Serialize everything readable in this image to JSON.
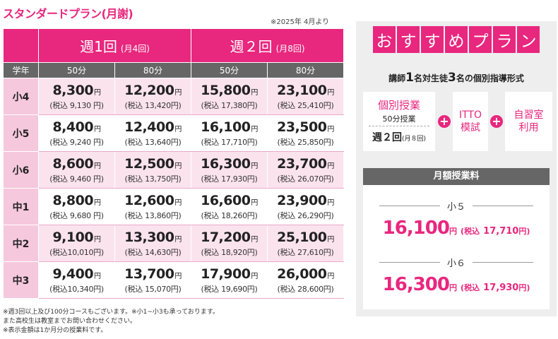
{
  "title": "スタンダードプラン(月謝)",
  "effective_date": "※2025年 4月より",
  "table": {
    "groups": [
      {
        "label": "週1回",
        "sub": "(月4回)"
      },
      {
        "label": "週２回",
        "sub": "(月8回)"
      }
    ],
    "grade_header": "学年",
    "durations": [
      "50分",
      "80分",
      "50分",
      "80分"
    ],
    "yen": "円",
    "rows": [
      {
        "grade": "小4",
        "prices": [
          {
            "main": "8,300",
            "tax": "(税込 9,130 円)"
          },
          {
            "main": "12,200",
            "tax": "(税込 13,420円)"
          },
          {
            "main": "15,800",
            "tax": "(税込 17,380円)"
          },
          {
            "main": "23,100",
            "tax": "(税込 25,410円)"
          }
        ]
      },
      {
        "grade": "小5",
        "prices": [
          {
            "main": "8,400",
            "tax": "(税込 9,240 円)"
          },
          {
            "main": "12,400",
            "tax": "(税込 13,640円)"
          },
          {
            "main": "16,100",
            "tax": "(税込 17,710円)"
          },
          {
            "main": "23,500",
            "tax": "(税込 25,850円)"
          }
        ]
      },
      {
        "grade": "小6",
        "prices": [
          {
            "main": "8,600",
            "tax": "(税込 9,460 円)"
          },
          {
            "main": "12,500",
            "tax": "(税込 13,750円)"
          },
          {
            "main": "16,300",
            "tax": "(税込 17,930円)"
          },
          {
            "main": "23,700",
            "tax": "(税込 26,070円)"
          }
        ]
      },
      {
        "grade": "中1",
        "prices": [
          {
            "main": "8,800",
            "tax": "(税込 9,680 円)"
          },
          {
            "main": "12,600",
            "tax": "(税込 13,860円)"
          },
          {
            "main": "16,600",
            "tax": "(税込 18,260円)"
          },
          {
            "main": "23,900",
            "tax": "(税込 26,290円)"
          }
        ]
      },
      {
        "grade": "中2",
        "prices": [
          {
            "main": "9,100",
            "tax": "(税込10,010円)"
          },
          {
            "main": "13,300",
            "tax": "(税込 14,630円)"
          },
          {
            "main": "17,200",
            "tax": "(税込 18,920円)"
          },
          {
            "main": "25,100",
            "tax": "(税込 27,610円)"
          }
        ]
      },
      {
        "grade": "中3",
        "prices": [
          {
            "main": "9,400",
            "tax": "(税込10,340円)"
          },
          {
            "main": "13,700",
            "tax": "(税込 15,070円)"
          },
          {
            "main": "17,900",
            "tax": "(税込 19,690円)"
          },
          {
            "main": "26,000",
            "tax": "(税込 28,600円)"
          }
        ]
      }
    ]
  },
  "notes": [
    "※週3回以上及び100分コースもございます。※小1~小3も承っております。",
    "また高校生は教室までお問い合わせください。",
    "※表示金額は1か月分の授業料です。"
  ],
  "recommend": {
    "header_chars": [
      "お",
      "す",
      "す",
      "め",
      "プ",
      "ラ",
      "ン"
    ],
    "subtitle_pre": "講師",
    "subtitle_n1": "1",
    "subtitle_mid": "名対生徒",
    "subtitle_n2": "3",
    "subtitle_post": "名の個別指導形式",
    "individual_title": "個別授業",
    "individual_sub": "50分授業",
    "individual_freq": "週２回",
    "individual_freq_sub": "(月８回)",
    "plus": "+",
    "itto_line1": "ITTO",
    "itto_line2": "模試",
    "self_line1": "自習室",
    "self_line2": "利用",
    "fee_header": "月額授業料",
    "fees": [
      {
        "grade": "小５",
        "amount": "16,100",
        "yen": "円",
        "tax_label": "(税込",
        "tax_amount": "17,710",
        "tax_close": "円)"
      },
      {
        "grade": "小６",
        "amount": "16,300",
        "yen": "円",
        "tax_label": "(税込",
        "tax_amount": "17,930",
        "tax_close": "円)"
      }
    ]
  },
  "colors": {
    "accent": "#e8277e",
    "row_light": "#fbe3ee",
    "grade_bg": "#f6c8dd",
    "gray_header": "#666666",
    "panel_bg": "#eeeeee"
  }
}
